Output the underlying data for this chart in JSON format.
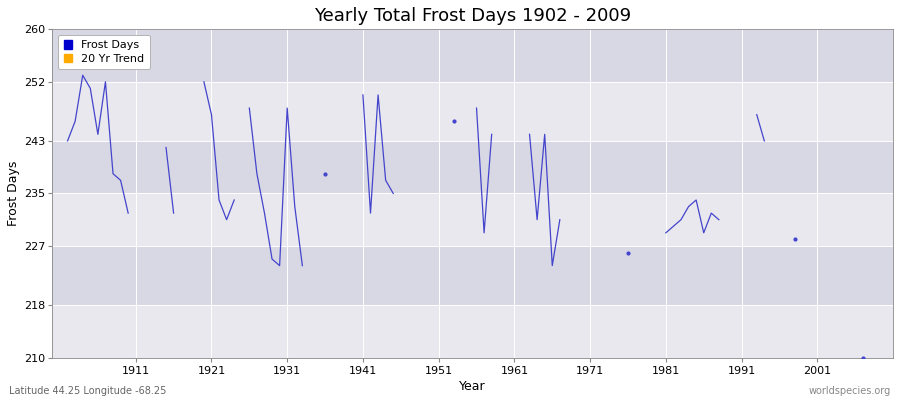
{
  "title": "Yearly Total Frost Days 1902 - 2009",
  "xlabel": "Year",
  "ylabel": "Frost Days",
  "lat_label": "Latitude 44.25 Longitude -68.25",
  "watermark": "worldspecies.org",
  "ylim": [
    210,
    260
  ],
  "xlim": [
    1900,
    2011
  ],
  "yticks": [
    210,
    218,
    227,
    235,
    243,
    252,
    260
  ],
  "xticks": [
    1911,
    1921,
    1931,
    1941,
    1951,
    1961,
    1971,
    1981,
    1991,
    2001
  ],
  "line_color": "#4444cc",
  "bg_color": "#e8e8ee",
  "band_color1": "#e8e8ee",
  "band_color2": "#d8d8e4",
  "grid_color": "#ffffff",
  "frost_data": [
    [
      1902,
      243
    ],
    [
      1903,
      246
    ],
    [
      1904,
      253
    ],
    [
      1905,
      251
    ],
    [
      1906,
      244
    ],
    [
      1907,
      252
    ],
    [
      1908,
      238
    ],
    [
      1909,
      237
    ],
    [
      1910,
      232
    ],
    [
      1915,
      242
    ],
    [
      1916,
      232
    ],
    [
      1920,
      252
    ],
    [
      1921,
      247
    ],
    [
      1922,
      234
    ],
    [
      1923,
      231
    ],
    [
      1924,
      234
    ],
    [
      1926,
      248
    ],
    [
      1927,
      238
    ],
    [
      1928,
      232
    ],
    [
      1929,
      225
    ],
    [
      1930,
      224
    ],
    [
      1931,
      248
    ],
    [
      1932,
      233
    ],
    [
      1933,
      224
    ],
    [
      1936,
      238
    ],
    [
      1941,
      250
    ],
    [
      1942,
      232
    ],
    [
      1943,
      250
    ],
    [
      1944,
      237
    ],
    [
      1945,
      235
    ],
    [
      1953,
      246
    ],
    [
      1956,
      248
    ],
    [
      1957,
      229
    ],
    [
      1958,
      244
    ],
    [
      1963,
      244
    ],
    [
      1964,
      231
    ],
    [
      1965,
      244
    ],
    [
      1966,
      224
    ],
    [
      1967,
      231
    ],
    [
      1976,
      226
    ],
    [
      1981,
      229
    ],
    [
      1982,
      230
    ],
    [
      1983,
      231
    ],
    [
      1984,
      233
    ],
    [
      1985,
      234
    ],
    [
      1986,
      229
    ],
    [
      1987,
      232
    ],
    [
      1988,
      231
    ],
    [
      1993,
      247
    ],
    [
      1994,
      243
    ],
    [
      1998,
      228
    ],
    [
      2007,
      210
    ]
  ],
  "legend_frost_color": "#0000cc",
  "legend_trend_color": "#ffaa00",
  "title_fontsize": 13,
  "axis_label_fontsize": 9,
  "tick_fontsize": 8,
  "legend_fontsize": 8
}
